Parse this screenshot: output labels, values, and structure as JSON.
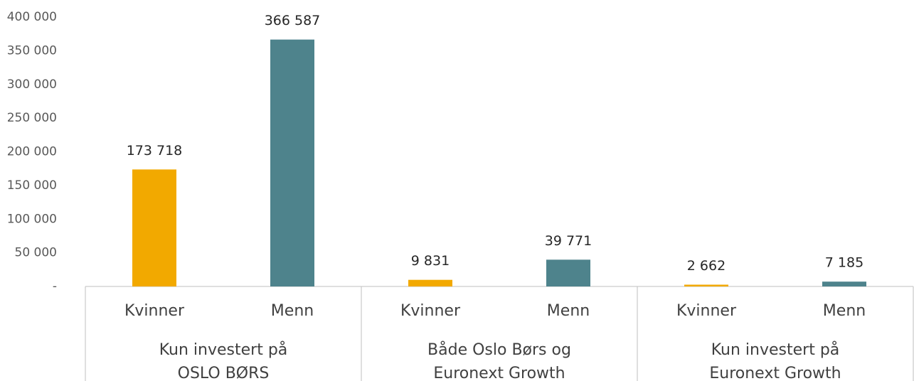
{
  "chart_data": {
    "type": "bar",
    "categories": [
      "Kvinner",
      "Menn",
      "Kvinner",
      "Menn",
      "Kvinner",
      "Menn"
    ],
    "values": [
      173718,
      366587,
      9831,
      39771,
      2662,
      7185
    ],
    "value_labels": [
      "173 718",
      "366 587",
      "9 831",
      "39 771",
      "2 662",
      "7 185"
    ],
    "colors": [
      "#f2a900",
      "#4e838c",
      "#f2a900",
      "#4e838c",
      "#f2a900",
      "#4e838c"
    ],
    "groups": [
      {
        "label": [
          "Kun investert på",
          "OSLO BØRS"
        ]
      },
      {
        "label": [
          "Både Oslo Børs og",
          "Euronext Growth"
        ]
      },
      {
        "label": [
          "Kun investert på",
          "Euronext Growth"
        ]
      }
    ],
    "ylim": [
      0,
      400000
    ],
    "yticks": [
      {
        "value": 0,
        "label": "-"
      },
      {
        "value": 50000,
        "label": "50 000"
      },
      {
        "value": 100000,
        "label": "100 000"
      },
      {
        "value": 150000,
        "label": "150 000"
      },
      {
        "value": 200000,
        "label": "200 000"
      },
      {
        "value": 250000,
        "label": "250 000"
      },
      {
        "value": 300000,
        "label": "300 000"
      },
      {
        "value": 350000,
        "label": "350 000"
      },
      {
        "value": 400000,
        "label": "400 000"
      }
    ],
    "grid": false
  }
}
